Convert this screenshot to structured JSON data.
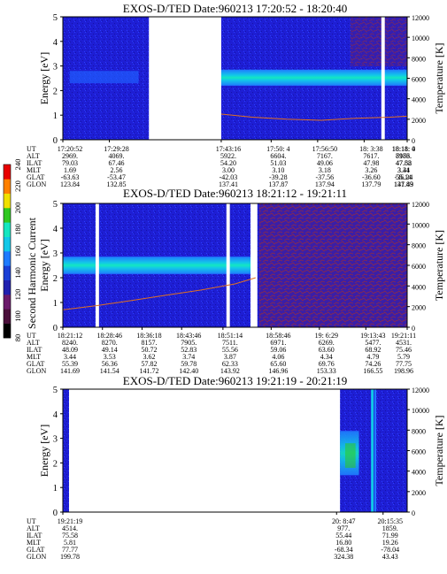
{
  "colorbar": {
    "label": "Second Harmonic Current",
    "ticks": [
      "240",
      "220",
      "200",
      "180",
      "160",
      "140",
      "120",
      "100",
      "80"
    ],
    "colors": [
      "#000000",
      "#4a0f3a",
      "#6b1a6b",
      "#2020b0",
      "#1a3fd6",
      "#1f7bff",
      "#12c8e8",
      "#14e6c0",
      "#2fc820",
      "#f0e000",
      "#ff8000",
      "#e80000"
    ]
  },
  "row_labels": [
    "UT",
    "ALT",
    "ILAT",
    "MLT",
    "GLAT",
    "GLON"
  ],
  "chart_data": [
    {
      "type": "heatmap",
      "title": "EXOS-D/TED   Date:960213  17:20:52 - 18:20:40",
      "ylabel": "Energy [eV]",
      "y2label": "Temperature [K]",
      "ylim": [
        0,
        5
      ],
      "y2lim": [
        0,
        12000
      ],
      "yticks": [
        "0",
        "1",
        "2",
        "3",
        "4",
        "5"
      ],
      "y2ticks": [
        "0",
        "2000",
        "4000",
        "6000",
        "8000",
        "10000",
        "12000"
      ],
      "data_gaps": [
        [
          0.25,
          0.46
        ],
        [
          0.925,
          0.935
        ]
      ],
      "table": [
        {
          "x": 0.0,
          "UT": "17:20:52",
          "ALT": "2969.",
          "ILAT": "79.03",
          "MLT": "1.69",
          "GLAT": "-63.63",
          "GLON": "123.84"
        },
        {
          "x": 0.135,
          "UT": "17:29:28",
          "ALT": "4069.",
          "ILAT": "67.46",
          "MLT": "2.56",
          "GLAT": "-53.47",
          "GLON": "132.85"
        },
        {
          "x": 0.46,
          "UT": "17:43:16",
          "ALT": "5922.",
          "ILAT": "54.20",
          "MLT": "3.00",
          "GLAT": "-42.03",
          "GLON": "137.41"
        },
        {
          "x": 0.605,
          "UT": "17:50: 4",
          "ALT": "6604.",
          "ILAT": "51.03",
          "MLT": "3.10",
          "GLAT": "-39.28",
          "GLON": "137.87"
        },
        {
          "x": 0.74,
          "UT": "17:56:50",
          "ALT": "7167.",
          "ILAT": "49.06",
          "MLT": "3.18",
          "GLAT": "-37.56",
          "GLON": "137.94"
        },
        {
          "x": 0.875,
          "UT": "18: 3:38",
          "ALT": "7617.",
          "ILAT": "47.98",
          "MLT": "3.26",
          "GLAT": "-36.60",
          "GLON": "137.79"
        },
        {
          "x": 1.01,
          "UT": "18:11: 4",
          "ALT": "7976.",
          "ILAT": "47.58",
          "MLT": "3.34",
          "GLAT": "-36.24",
          "GLON": "137.49"
        },
        {
          "x": 1.16,
          "UT": "18:18: 0",
          "ALT": "8183.",
          "ILAT": "47.82",
          "MLT": "3.41",
          "GLAT": "55.14",
          "GLON": "141.83"
        }
      ]
    },
    {
      "type": "heatmap",
      "title": "EXOS-D/TED   Date:960213  18:21:12 - 19:21:11",
      "ylabel": "Energy [eV]",
      "y2label": "Temperature [K]",
      "ylim": [
        0,
        5
      ],
      "y2lim": [
        0,
        12000
      ],
      "yticks": [
        "0",
        "1",
        "2",
        "3",
        "4",
        "5"
      ],
      "y2ticks": [
        "0",
        "2000",
        "4000",
        "6000",
        "8000",
        "10000",
        "12000"
      ],
      "data_gaps": [
        [
          0.095,
          0.105
        ],
        [
          0.475,
          0.485
        ],
        [
          0.545,
          0.565
        ]
      ],
      "table": [
        {
          "x": 0.0,
          "UT": "18:21:12",
          "ALT": "8240.",
          "ILAT": "48.09",
          "MLT": "3.44",
          "GLAT": "55.39",
          "GLON": "141.69"
        },
        {
          "x": 0.115,
          "UT": "18:28:46",
          "ALT": "8270.",
          "ILAT": "49.14",
          "MLT": "3.53",
          "GLAT": "56.36",
          "GLON": "141.54"
        },
        {
          "x": 0.23,
          "UT": "18:36:18",
          "ALT": "8157.",
          "ILAT": "50.72",
          "MLT": "3.62",
          "GLAT": "57.82",
          "GLON": "141.72"
        },
        {
          "x": 0.345,
          "UT": "18:43:46",
          "ALT": "7905.",
          "ILAT": "52.83",
          "MLT": "3.74",
          "GLAT": "59.78",
          "GLON": "142.40"
        },
        {
          "x": 0.465,
          "UT": "18:51:14",
          "ALT": "7511.",
          "ILAT": "55.56",
          "MLT": "3.87",
          "GLAT": "62.33",
          "GLON": "143.92"
        },
        {
          "x": 0.605,
          "UT": "18:58:46",
          "ALT": "6971.",
          "ILAT": "59.06",
          "MLT": "4.06",
          "GLAT": "65.60",
          "GLON": "146.96"
        },
        {
          "x": 0.745,
          "UT": "19: 6:29",
          "ALT": "6269.",
          "ILAT": "63.60",
          "MLT": "4.34",
          "GLAT": "69.76",
          "GLON": "153.33"
        },
        {
          "x": 0.88,
          "UT": "19:13:43",
          "ALT": "5477.",
          "ILAT": "68.92",
          "MLT": "4.79",
          "GLAT": "74.26",
          "GLON": "166.55"
        },
        {
          "x": 1.02,
          "UT": "19:21:11",
          "ALT": "4531.",
          "ILAT": "75.46",
          "MLT": "5.79",
          "GLAT": "77.75",
          "GLON": "198.96"
        }
      ]
    },
    {
      "type": "heatmap",
      "title": "EXOS-D/TED   Date:960213  19:21:19 - 20:21:19",
      "ylabel": "Energy [eV]",
      "y2label": "Temperature [K]",
      "ylim": [
        0,
        5
      ],
      "y2lim": [
        0,
        12000
      ],
      "yticks": [
        "0",
        "1",
        "2",
        "3",
        "4",
        "5"
      ],
      "y2ticks": [
        "0",
        "2000",
        "4000",
        "6000",
        "8000",
        "10000",
        "12000"
      ],
      "data_gaps": [
        [
          0.02,
          0.805
        ]
      ],
      "table": [
        {
          "x": 0.0,
          "UT": "19:21:19",
          "ALT": "4514.",
          "ILAT": "75.58",
          "MLT": "5.81",
          "GLAT": "77.77",
          "GLON": "199.78"
        },
        {
          "x": 0.795,
          "UT": "20: 8:47",
          "ALT": "977.",
          "ILAT": "55.44",
          "MLT": "16.80",
          "GLAT": "-68.34",
          "GLON": "324.38"
        },
        {
          "x": 0.93,
          "UT": "20:15:35",
          "ALT": "1859.",
          "ILAT": "71.99",
          "MLT": "19.26",
          "GLAT": "-78.04",
          "GLON": "43.43"
        }
      ]
    }
  ]
}
